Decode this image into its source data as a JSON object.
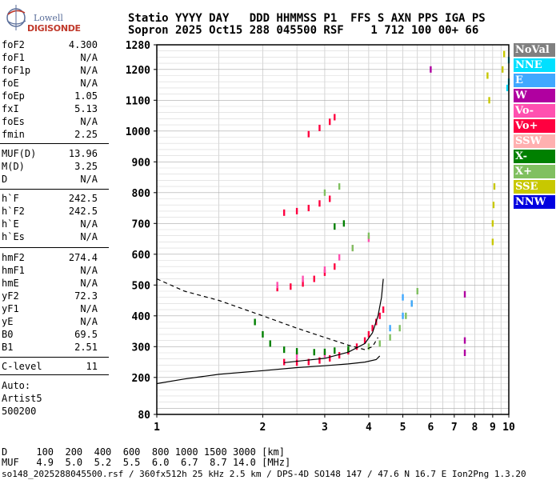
{
  "logo": {
    "line1": "Lowell",
    "line2": "DIGISONDE"
  },
  "header": {
    "line1": "Statio YYYY DAY   DDD HHMMSS P1  FFS S AXN PPS IGA PS",
    "line2": "Sopron 2025 Oct15 288 045500 RSF    1 712 100 00+ 66"
  },
  "parameters": {
    "group1": [
      {
        "label": "foF2",
        "value": "4.300"
      },
      {
        "label": "foF1",
        "value": "N/A"
      },
      {
        "label": "foF1p",
        "value": "N/A"
      },
      {
        "label": "foE",
        "value": "N/A"
      },
      {
        "label": "foEp",
        "value": "1.05"
      },
      {
        "label": "fxI",
        "value": "5.13"
      },
      {
        "label": "foEs",
        "value": "N/A"
      },
      {
        "label": "fmin",
        "value": "2.25"
      }
    ],
    "group2": [
      {
        "label": "MUF(D)",
        "value": "13.96"
      },
      {
        "label": "M(D)",
        "value": "3.25"
      },
      {
        "label": "D",
        "value": "N/A"
      }
    ],
    "group3": [
      {
        "label": "h`F",
        "value": "242.5"
      },
      {
        "label": "h`F2",
        "value": "242.5"
      },
      {
        "label": "h`E",
        "value": "N/A"
      },
      {
        "label": "h`Es",
        "value": "N/A"
      }
    ],
    "group4": [
      {
        "label": "hmF2",
        "value": "274.4"
      },
      {
        "label": "hmF1",
        "value": "N/A"
      },
      {
        "label": "hmE",
        "value": "N/A"
      },
      {
        "label": "yF2",
        "value": "72.3"
      },
      {
        "label": "yF1",
        "value": "N/A"
      },
      {
        "label": "yE",
        "value": "N/A"
      },
      {
        "label": "B0",
        "value": "69.5"
      },
      {
        "label": "B1",
        "value": "2.51"
      }
    ],
    "group5": [
      {
        "label": "C-level",
        "value": "11"
      }
    ]
  },
  "auto": {
    "line1": "Auto:",
    "line2": "Artist5",
    "line3": "500200"
  },
  "legend": [
    {
      "label": "NoVal",
      "color": "#808080"
    },
    {
      "label": "NNE",
      "color": "#00e0ff"
    },
    {
      "label": "E",
      "color": "#40a8ff"
    },
    {
      "label": "W",
      "color": "#b000a0"
    },
    {
      "label": "Vo-",
      "color": "#ff50b0"
    },
    {
      "label": "Vo+",
      "color": "#ff0040"
    },
    {
      "label": "SSW",
      "color": "#ffb0b0"
    },
    {
      "label": "X-",
      "color": "#008000"
    },
    {
      "label": "X+",
      "color": "#80c060"
    },
    {
      "label": "SSE",
      "color": "#c8c800"
    },
    {
      "label": "NNW",
      "color": "#0000e0"
    }
  ],
  "bottom": {
    "d_line": "D     100  200  400  600  800 1000 1500 3000 [km]",
    "muf_line": "MUF   4.9  5.0  5.2  5.5  6.0  6.7  8.7 14.0 [MHz]"
  },
  "footer": "so148_2025288045500.rsf / 360fx512h 25 kHz 2.5 km / DPS-4D SO148 147 / 47.6 N 16.7 E Ion2Png 1.3.20",
  "chart_data": {
    "type": "scatter",
    "title": "",
    "xlabel": "",
    "ylabel": "",
    "x_scale": "log",
    "xlim": [
      1,
      10
    ],
    "ylim": [
      80,
      1280
    ],
    "x_ticks": [
      1,
      2,
      3,
      4,
      5,
      6,
      7,
      8,
      9,
      10
    ],
    "y_ticks": [
      80,
      200,
      300,
      400,
      500,
      600,
      700,
      800,
      900,
      1000,
      1100,
      1200,
      1280
    ],
    "grid": true,
    "series": [
      {
        "name": "Vo+",
        "color": "#ff0040",
        "points": [
          [
            2.3,
            250
          ],
          [
            2.5,
            248
          ],
          [
            2.7,
            250
          ],
          [
            2.9,
            255
          ],
          [
            3.1,
            262
          ],
          [
            3.3,
            272
          ],
          [
            3.5,
            285
          ],
          [
            3.7,
            300
          ],
          [
            3.9,
            320
          ],
          [
            4.0,
            340
          ],
          [
            4.1,
            360
          ],
          [
            4.2,
            380
          ],
          [
            4.3,
            400
          ],
          [
            4.4,
            420
          ],
          [
            2.2,
            490
          ],
          [
            2.4,
            495
          ],
          [
            2.6,
            505
          ],
          [
            2.8,
            520
          ],
          [
            3.0,
            540
          ],
          [
            3.2,
            560
          ],
          [
            2.3,
            735
          ],
          [
            2.5,
            740
          ],
          [
            2.7,
            750
          ],
          [
            2.9,
            765
          ],
          [
            3.1,
            780
          ],
          [
            2.7,
            990
          ],
          [
            2.9,
            1010
          ],
          [
            3.1,
            1030
          ],
          [
            3.2,
            1045
          ]
        ]
      },
      {
        "name": "Vo-",
        "color": "#ff50b0",
        "points": [
          [
            2.2,
            500
          ],
          [
            2.6,
            520
          ],
          [
            3.0,
            550
          ],
          [
            3.3,
            590
          ],
          [
            3.6,
            620
          ],
          [
            4.0,
            650
          ],
          [
            2.5,
            270
          ],
          [
            3.0,
            275
          ]
        ]
      },
      {
        "name": "X-",
        "color": "#008000",
        "points": [
          [
            1.9,
            380
          ],
          [
            2.0,
            340
          ],
          [
            2.1,
            310
          ],
          [
            2.3,
            290
          ],
          [
            2.5,
            285
          ],
          [
            2.8,
            282
          ],
          [
            3.0,
            283
          ],
          [
            3.2,
            287
          ],
          [
            3.5,
            292
          ],
          [
            3.2,
            690
          ],
          [
            3.4,
            700
          ]
        ]
      },
      {
        "name": "X+",
        "color": "#80c060",
        "points": [
          [
            4.0,
            300
          ],
          [
            4.3,
            310
          ],
          [
            4.6,
            330
          ],
          [
            4.9,
            360
          ],
          [
            5.1,
            400
          ],
          [
            5.3,
            440
          ],
          [
            5.5,
            480
          ],
          [
            3.0,
            800
          ],
          [
            3.3,
            820
          ],
          [
            3.6,
            620
          ],
          [
            4.0,
            660
          ]
        ]
      },
      {
        "name": "E",
        "color": "#40a8ff",
        "points": [
          [
            4.6,
            360
          ],
          [
            5.0,
            400
          ],
          [
            5.3,
            440
          ],
          [
            5.0,
            460
          ]
        ]
      },
      {
        "name": "SSE",
        "color": "#c8c800",
        "points": [
          [
            9.0,
            640
          ],
          [
            9.0,
            700
          ],
          [
            9.05,
            760
          ],
          [
            9.1,
            820
          ],
          [
            9.6,
            1200
          ],
          [
            9.7,
            1250
          ],
          [
            8.7,
            1180
          ],
          [
            8.8,
            1100
          ]
        ]
      },
      {
        "name": "W",
        "color": "#b000a0",
        "points": [
          [
            7.5,
            280
          ],
          [
            7.5,
            320
          ],
          [
            7.5,
            470
          ],
          [
            6.0,
            1200
          ]
        ]
      },
      {
        "name": "NNE",
        "color": "#00e0ff",
        "points": [
          [
            10.0,
            1230
          ],
          [
            10.0,
            1160
          ],
          [
            9.9,
            1140
          ]
        ]
      }
    ],
    "curves": [
      {
        "style": "dashed",
        "points": [
          [
            1.0,
            520
          ],
          [
            1.2,
            480
          ],
          [
            1.5,
            450
          ],
          [
            2.0,
            400
          ],
          [
            2.5,
            360
          ],
          [
            3.0,
            330
          ],
          [
            3.5,
            305
          ],
          [
            3.9,
            290
          ],
          [
            4.1,
            300
          ],
          [
            4.25,
            330
          ]
        ]
      },
      {
        "style": "solid",
        "points": [
          [
            1.0,
            180
          ],
          [
            1.2,
            195
          ],
          [
            1.5,
            210
          ],
          [
            2.0,
            222
          ],
          [
            2.5,
            232
          ],
          [
            3.0,
            238
          ],
          [
            3.5,
            244
          ],
          [
            3.9,
            250
          ],
          [
            4.2,
            258
          ],
          [
            4.3,
            270
          ]
        ]
      },
      {
        "style": "solid",
        "points": [
          [
            2.3,
            248
          ],
          [
            3.0,
            262
          ],
          [
            3.5,
            282
          ],
          [
            3.9,
            310
          ],
          [
            4.1,
            345
          ],
          [
            4.25,
            400
          ],
          [
            4.35,
            460
          ],
          [
            4.4,
            520
          ]
        ]
      }
    ]
  }
}
